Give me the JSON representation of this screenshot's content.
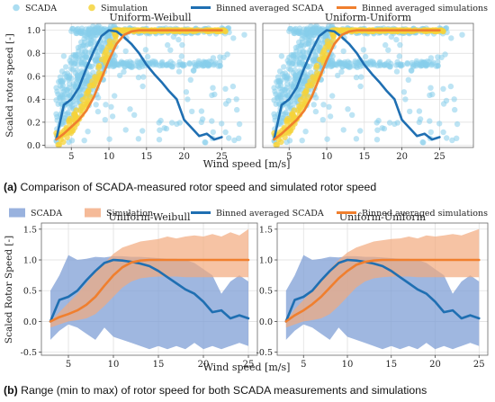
{
  "figure": {
    "caption_a_label": "(a)",
    "caption_a_text": "Comparison of SCADA-measured rotor speed and simulated rotor speed",
    "caption_b_label": "(b)",
    "caption_b_text": "Range (min to max) of rotor speed for both SCADA measurements and simulations"
  },
  "colors": {
    "scada": "#87CEEB",
    "simulation": "#F5D33B",
    "binned_scada": "#1F6FB2",
    "binned_sim": "#F07F2E",
    "scada_band": "#7F9FD6",
    "sim_band": "#F2A97E"
  },
  "chart_data": [
    {
      "type": "scatter",
      "title": "Uniform-Weibull",
      "xlabel": "Wind speed [m/s]",
      "ylabel": "Scaled rotor speed [-]",
      "xlim": [
        1.5,
        29.5
      ],
      "ylim": [
        -0.02,
        1.06
      ],
      "xticks": [
        "5",
        "10",
        "15",
        "20",
        "25"
      ],
      "yticks": [
        "0.0",
        "0.2",
        "0.4",
        "0.6",
        "0.8",
        "1.0"
      ],
      "legend": [
        "SCADA",
        "Simulation",
        "Binned averaged SCADA",
        "Binned averaged simulations"
      ],
      "series": [
        {
          "name": "Binned averaged SCADA",
          "x": [
            3,
            4,
            5,
            6,
            7,
            8,
            9,
            10,
            11,
            12,
            13,
            14,
            15,
            16,
            17,
            18,
            19,
            20,
            21,
            22,
            23,
            24,
            25
          ],
          "y": [
            0.05,
            0.35,
            0.4,
            0.5,
            0.67,
            0.82,
            0.95,
            1.0,
            0.99,
            0.94,
            0.88,
            0.8,
            0.7,
            0.62,
            0.55,
            0.47,
            0.4,
            0.22,
            0.15,
            0.08,
            0.1,
            0.05,
            0.07
          ]
        },
        {
          "name": "Binned averaged simulations",
          "x": [
            3,
            4,
            5,
            6,
            7,
            8,
            9,
            10,
            11,
            12,
            13,
            14,
            15,
            16,
            17,
            18,
            19,
            20,
            21,
            22,
            23,
            24,
            25
          ],
          "y": [
            0.05,
            0.1,
            0.16,
            0.22,
            0.3,
            0.42,
            0.58,
            0.74,
            0.88,
            0.96,
            0.99,
            1.0,
            1.0,
            1.0,
            1.0,
            1.0,
            1.0,
            1.0,
            1.0,
            1.0,
            1.0,
            1.0,
            1.0
          ]
        }
      ]
    },
    {
      "type": "scatter",
      "title": "Uniform-Uniform",
      "xlim": [
        1.5,
        29.5
      ],
      "ylim": [
        -0.02,
        1.06
      ],
      "xticks": [
        "5",
        "10",
        "15",
        "20",
        "25"
      ],
      "series": [
        {
          "name": "Binned averaged SCADA",
          "x": [
            3,
            4,
            5,
            6,
            7,
            8,
            9,
            10,
            11,
            12,
            13,
            14,
            15,
            16,
            17,
            18,
            19,
            20,
            21,
            22,
            23,
            24,
            25
          ],
          "y": [
            0.05,
            0.35,
            0.4,
            0.5,
            0.67,
            0.82,
            0.95,
            1.0,
            0.99,
            0.94,
            0.88,
            0.8,
            0.7,
            0.62,
            0.55,
            0.47,
            0.4,
            0.22,
            0.15,
            0.08,
            0.1,
            0.05,
            0.07
          ]
        },
        {
          "name": "Binned averaged simulations",
          "x": [
            3,
            4,
            5,
            6,
            7,
            8,
            9,
            10,
            11,
            12,
            13,
            14,
            15,
            16,
            17,
            18,
            19,
            20,
            21,
            22,
            23,
            24,
            25
          ],
          "y": [
            0.05,
            0.1,
            0.16,
            0.22,
            0.3,
            0.42,
            0.58,
            0.74,
            0.88,
            0.96,
            0.99,
            1.0,
            1.0,
            1.0,
            1.0,
            1.0,
            1.0,
            1.0,
            1.0,
            1.0,
            1.0,
            1.0,
            1.0
          ]
        }
      ]
    },
    {
      "type": "area",
      "title": "Uniform-Weibull",
      "xlabel": "Wind speed [m/s]",
      "ylabel": "Scaled Rotor Speed [-]",
      "xlim": [
        2,
        26
      ],
      "ylim": [
        -0.55,
        1.6
      ],
      "xticks": [
        "5",
        "10",
        "15",
        "20",
        "25"
      ],
      "yticks": [
        "-0.5",
        "0.0",
        "0.5",
        "1.0",
        "1.5"
      ],
      "legend": [
        "SCADA",
        "Simulation",
        "Binned averaged SCADA",
        "Binned averaged simulations"
      ],
      "series": [
        {
          "name": "SCADA",
          "x": [
            3,
            4,
            5,
            6,
            7,
            8,
            9,
            10,
            11,
            12,
            13,
            14,
            15,
            16,
            17,
            18,
            19,
            20,
            21,
            22,
            23,
            24,
            25
          ],
          "min": [
            -0.3,
            -0.15,
            -0.05,
            -0.1,
            -0.2,
            -0.3,
            -0.1,
            -0.25,
            -0.3,
            -0.35,
            -0.4,
            -0.45,
            -0.4,
            -0.45,
            -0.4,
            -0.45,
            -0.35,
            -0.45,
            -0.4,
            -0.45,
            -0.4,
            -0.35,
            -0.4
          ],
          "max": [
            0.5,
            0.75,
            1.08,
            1.0,
            1.02,
            1.05,
            1.04,
            1.06,
            1.06,
            1.05,
            1.05,
            1.04,
            1.03,
            1.02,
            1.02,
            1.0,
            0.95,
            0.85,
            0.75,
            0.45,
            0.65,
            0.75,
            0.65
          ]
        },
        {
          "name": "Simulation",
          "x": [
            3,
            4,
            5,
            6,
            7,
            8,
            9,
            10,
            11,
            12,
            13,
            14,
            15,
            16,
            17,
            18,
            19,
            20,
            21,
            22,
            23,
            24,
            25
          ],
          "min": [
            -0.1,
            -0.05,
            0.0,
            0.02,
            0.05,
            0.12,
            0.25,
            0.4,
            0.55,
            0.65,
            0.7,
            0.72,
            0.73,
            0.73,
            0.73,
            0.72,
            0.72,
            0.72,
            0.72,
            0.72,
            0.72,
            0.72,
            0.72
          ],
          "max": [
            0.0,
            0.15,
            0.3,
            0.45,
            0.62,
            0.8,
            0.95,
            1.1,
            1.2,
            1.25,
            1.3,
            1.32,
            1.34,
            1.38,
            1.35,
            1.38,
            1.4,
            1.38,
            1.42,
            1.38,
            1.45,
            1.4,
            1.5
          ]
        },
        {
          "name": "Binned averaged SCADA",
          "x": [
            3,
            4,
            5,
            6,
            7,
            8,
            9,
            10,
            11,
            12,
            13,
            14,
            15,
            16,
            17,
            18,
            19,
            20,
            21,
            22,
            23,
            24,
            25
          ],
          "y": [
            0.0,
            0.35,
            0.4,
            0.5,
            0.67,
            0.82,
            0.95,
            1.0,
            0.99,
            0.97,
            0.94,
            0.9,
            0.82,
            0.72,
            0.62,
            0.52,
            0.45,
            0.32,
            0.15,
            0.18,
            0.05,
            0.1,
            0.05
          ]
        },
        {
          "name": "Binned averaged simulations",
          "x": [
            3,
            4,
            5,
            6,
            7,
            8,
            9,
            10,
            11,
            12,
            13,
            14,
            15,
            16,
            17,
            18,
            19,
            20,
            21,
            22,
            23,
            24,
            25
          ],
          "y": [
            0.0,
            0.07,
            0.12,
            0.18,
            0.27,
            0.4,
            0.58,
            0.75,
            0.88,
            0.96,
            0.99,
            1.0,
            1.0,
            1.0,
            1.0,
            1.0,
            1.0,
            1.0,
            1.0,
            1.0,
            1.0,
            1.0,
            1.0
          ]
        }
      ]
    },
    {
      "type": "area",
      "title": "Uniform-Uniform",
      "xlim": [
        2,
        26
      ],
      "ylim": [
        -0.55,
        1.6
      ],
      "xticks": [
        "5",
        "10",
        "15",
        "20",
        "25"
      ],
      "yticks": [
        "-0.5",
        "0.0",
        "0.5",
        "1.0",
        "1.5"
      ],
      "series": [
        {
          "name": "SCADA",
          "x": [
            3,
            4,
            5,
            6,
            7,
            8,
            9,
            10,
            11,
            12,
            13,
            14,
            15,
            16,
            17,
            18,
            19,
            20,
            21,
            22,
            23,
            24,
            25
          ],
          "min": [
            -0.3,
            -0.15,
            -0.05,
            -0.1,
            -0.2,
            -0.3,
            -0.1,
            -0.25,
            -0.3,
            -0.35,
            -0.4,
            -0.45,
            -0.4,
            -0.45,
            -0.4,
            -0.45,
            -0.35,
            -0.45,
            -0.4,
            -0.45,
            -0.4,
            -0.35,
            -0.4
          ],
          "max": [
            0.5,
            0.75,
            1.08,
            1.0,
            1.02,
            1.05,
            1.04,
            1.06,
            1.06,
            1.05,
            1.05,
            1.04,
            1.03,
            1.02,
            1.02,
            1.0,
            0.95,
            0.85,
            0.75,
            0.45,
            0.65,
            0.75,
            0.65
          ]
        },
        {
          "name": "Simulation",
          "x": [
            3,
            4,
            5,
            6,
            7,
            8,
            9,
            10,
            11,
            12,
            13,
            14,
            15,
            16,
            17,
            18,
            19,
            20,
            21,
            22,
            23,
            24,
            25
          ],
          "min": [
            -0.1,
            -0.05,
            0.0,
            0.02,
            0.05,
            0.12,
            0.25,
            0.4,
            0.55,
            0.65,
            0.7,
            0.72,
            0.73,
            0.73,
            0.73,
            0.72,
            0.72,
            0.72,
            0.72,
            0.72,
            0.72,
            0.72,
            0.72
          ],
          "max": [
            0.0,
            0.2,
            0.35,
            0.5,
            0.65,
            0.85,
            1.0,
            1.12,
            1.2,
            1.25,
            1.3,
            1.32,
            1.34,
            1.35,
            1.38,
            1.35,
            1.4,
            1.38,
            1.4,
            1.42,
            1.4,
            1.45,
            1.5
          ]
        },
        {
          "name": "Binned averaged SCADA",
          "x": [
            3,
            4,
            5,
            6,
            7,
            8,
            9,
            10,
            11,
            12,
            13,
            14,
            15,
            16,
            17,
            18,
            19,
            20,
            21,
            22,
            23,
            24,
            25
          ],
          "y": [
            0.0,
            0.35,
            0.4,
            0.5,
            0.67,
            0.82,
            0.95,
            1.0,
            0.99,
            0.97,
            0.94,
            0.9,
            0.82,
            0.72,
            0.62,
            0.52,
            0.45,
            0.32,
            0.15,
            0.18,
            0.05,
            0.1,
            0.05
          ]
        },
        {
          "name": "Binned averaged simulations",
          "x": [
            3,
            4,
            5,
            6,
            7,
            8,
            9,
            10,
            11,
            12,
            13,
            14,
            15,
            16,
            17,
            18,
            19,
            20,
            21,
            22,
            23,
            24,
            25
          ],
          "y": [
            0.0,
            0.1,
            0.18,
            0.28,
            0.4,
            0.55,
            0.7,
            0.82,
            0.92,
            0.97,
            0.99,
            1.0,
            1.0,
            1.0,
            1.0,
            1.0,
            1.0,
            1.0,
            1.0,
            1.0,
            1.0,
            1.0,
            1.0
          ]
        }
      ]
    }
  ]
}
